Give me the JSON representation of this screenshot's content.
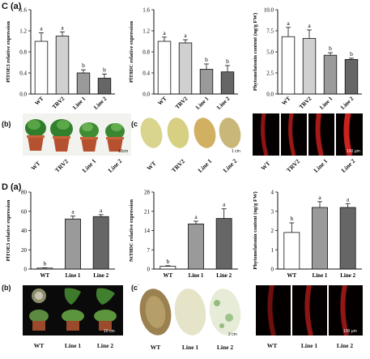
{
  "labels": {
    "C_a": "C (a)",
    "C_b": "(b)",
    "C_c": "(c)",
    "D_a": "D (a)",
    "D_b": "(b)",
    "D_c": "(c)"
  },
  "photos": {
    "C_b": {
      "categories": [
        "WT",
        "TRV2",
        "Line 1",
        "Line 2"
      ],
      "scale": "10cm"
    },
    "C_c": {
      "categories": [
        "WT",
        "TRV2",
        "Line 1",
        "Line 2"
      ],
      "scale": "1 cm"
    },
    "C_f": {
      "categories": [
        "WT",
        "TRV2",
        "Line 1",
        "Line 2"
      ],
      "scale": "100 μm"
    },
    "D_b": {
      "categories": [
        "WT",
        "Line 1",
        "Line 2"
      ],
      "scale": "10 cm"
    },
    "D_c": {
      "categories": [
        "WT",
        "Line 1",
        "Line 2"
      ],
      "scale": "2 cm"
    },
    "D_f": {
      "categories": [
        "WT",
        "Line 1",
        "Line 2"
      ],
      "scale": "100 μm"
    }
  },
  "colors": {
    "WT": "#ffffff",
    "TRV2": "#d0d0d0",
    "Line1": "#9a9a9a",
    "Line2": "#666666",
    "axis": "#111111"
  },
  "chart_data": [
    {
      "id": "C1",
      "type": "bar",
      "categories": [
        "WT",
        "TRV2",
        "Line 1",
        "Line 2"
      ],
      "values": [
        1.0,
        1.1,
        0.4,
        0.3
      ],
      "errors": [
        0.16,
        0.08,
        0.06,
        0.08
      ],
      "letters": [
        "a",
        "a",
        "b",
        "b"
      ],
      "ylabel": "PlTOE3 relative expression",
      "yticks": [
        0,
        0.4,
        0.8,
        1.2,
        1.6
      ],
      "ylim": [
        0,
        1.6
      ]
    },
    {
      "id": "C2",
      "type": "bar",
      "categories": [
        "WT",
        "TRV2",
        "Line 1",
        "Line 2"
      ],
      "values": [
        1.0,
        0.97,
        0.47,
        0.42
      ],
      "errors": [
        0.08,
        0.06,
        0.1,
        0.12
      ],
      "letters": [
        "a",
        "a",
        "b",
        "b"
      ],
      "ylabel": "PlT8DC relative expression",
      "yticks": [
        0,
        0.4,
        0.8,
        1.2,
        1.6
      ],
      "ylim": [
        0,
        1.6
      ]
    },
    {
      "id": "C3",
      "type": "bar",
      "categories": [
        "WT",
        "TRV2",
        "Line 1",
        "Line 2"
      ],
      "values": [
        6.8,
        6.6,
        4.6,
        4.1
      ],
      "errors": [
        1.1,
        1.0,
        0.3,
        0.15
      ],
      "letters": [
        "a",
        "a",
        "b",
        "b"
      ],
      "ylabel": "Phytomelatonin content (ng/g FW)",
      "yticks": [
        0,
        2.5,
        5.0,
        7.5,
        10.0
      ],
      "ylim": [
        0,
        10.0
      ]
    },
    {
      "id": "D1",
      "type": "bar",
      "categories": [
        "WT",
        "Line 1",
        "Line 2"
      ],
      "values": [
        1,
        52,
        54.5
      ],
      "errors": [
        0.3,
        3,
        2
      ],
      "letters": [
        "b",
        "a",
        "a"
      ],
      "ylabel": "PlTOE3 relative expression",
      "yticks": [
        0,
        20,
        40,
        60,
        80
      ],
      "ylim": [
        0,
        80
      ]
    },
    {
      "id": "D2",
      "type": "bar",
      "categories": [
        "WT",
        "Line 1",
        "Line 2"
      ],
      "values": [
        1,
        16.4,
        18.4
      ],
      "errors": [
        0.2,
        1.0,
        3.5
      ],
      "letters": [
        "b",
        "a",
        "a"
      ],
      "ylabel": "NtT8DC relative expression",
      "yticks": [
        0,
        7,
        14,
        21,
        28
      ],
      "ylim": [
        0,
        28
      ]
    },
    {
      "id": "D3",
      "type": "bar",
      "categories": [
        "WT",
        "Line 1",
        "Line 2"
      ],
      "values": [
        1.9,
        3.2,
        3.2
      ],
      "errors": [
        0.5,
        0.3,
        0.2
      ],
      "letters": [
        "b",
        "a",
        "a"
      ],
      "ylabel": "Phytomelatonin content (ng/g FW)",
      "yticks": [
        0,
        1,
        2,
        3,
        4
      ],
      "ylim": [
        0,
        4
      ]
    }
  ]
}
